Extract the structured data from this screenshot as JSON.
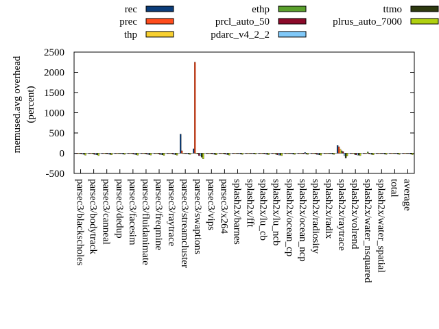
{
  "chart_data": {
    "type": "bar",
    "title": "",
    "ylabel": "memused.avg overhead (percent)",
    "ylabel_lines": [
      "memused.avg overhead",
      "(percent)"
    ],
    "xlabel": "",
    "ylim": [
      -500,
      2500
    ],
    "yticks": [
      -500,
      0,
      500,
      1000,
      1500,
      2000,
      2500
    ],
    "legend_position": "top",
    "categories": [
      "parsec3/blackscholes",
      "parsec3/bodytrack",
      "parsec3/canneal",
      "parsec3/dedup",
      "parsec3/facesim",
      "parsec3/fluidanimate",
      "parsec3/freqmine",
      "parsec3/raytrace",
      "parsec3/streamcluster",
      "parsec3/swaptions",
      "parsec3/vips",
      "parsec3/x264",
      "splash2x/barnes",
      "splash2x/fft",
      "splash2x/lu_cb",
      "splash2x/lu_ncb",
      "splash2x/ocean_cp",
      "splash2x/ocean_ncp",
      "splash2x/radiosity",
      "splash2x/radix",
      "splash2x/raytrace",
      "splash2x/volrend",
      "splash2x/water_nsquared",
      "splash2x/water_spatial",
      "total",
      "average"
    ],
    "series": [
      {
        "name": "rec",
        "color": "#0b3d7a",
        "values": [
          -5,
          -5,
          -5,
          -5,
          -5,
          -5,
          -5,
          -5,
          470,
          110,
          -5,
          -5,
          -5,
          -5,
          -5,
          -5,
          -5,
          -5,
          -5,
          -5,
          190,
          -5,
          -5,
          -5,
          -5,
          -5
        ]
      },
      {
        "name": "prec",
        "color": "#ff4c1c",
        "values": [
          -5,
          -5,
          -5,
          -5,
          -5,
          -5,
          -5,
          -5,
          60,
          2250,
          -5,
          -5,
          -5,
          -5,
          -5,
          -5,
          -5,
          -5,
          -5,
          -5,
          160,
          -5,
          -5,
          -5,
          -5,
          -5
        ]
      },
      {
        "name": "thp",
        "color": "#f8d030",
        "values": [
          -10,
          -10,
          -10,
          -10,
          -10,
          -10,
          -10,
          -10,
          -10,
          -10,
          -10,
          -10,
          -10,
          -10,
          -10,
          -10,
          -10,
          -10,
          -10,
          -10,
          100,
          -10,
          -10,
          -10,
          -10,
          -10
        ]
      },
      {
        "name": "ethp",
        "color": "#5aa02c",
        "values": [
          -15,
          -20,
          -20,
          -15,
          -15,
          -20,
          -20,
          -15,
          -10,
          -20,
          -15,
          -20,
          -15,
          -10,
          -15,
          -30,
          -15,
          -15,
          -20,
          -10,
          60,
          -30,
          30,
          -15,
          -10,
          -15
        ]
      },
      {
        "name": "prcl_auto_50",
        "color": "#8b0a2a",
        "values": [
          -20,
          -30,
          -20,
          -15,
          -25,
          -25,
          -30,
          -25,
          -15,
          -60,
          -20,
          -25,
          -15,
          -15,
          -20,
          -40,
          -15,
          -20,
          -30,
          -15,
          40,
          -40,
          -20,
          -15,
          -15,
          -15
        ]
      },
      {
        "name": "pdarc_v4_2_2",
        "color": "#80c8f8",
        "values": [
          -25,
          -35,
          -25,
          -20,
          -30,
          -30,
          -35,
          -30,
          -20,
          -70,
          -25,
          -30,
          -20,
          -15,
          -25,
          -45,
          -20,
          20,
          -35,
          -20,
          -60,
          -45,
          -25,
          -20,
          -20,
          -20
        ]
      },
      {
        "name": "ttmo",
        "color": "#2e3a10",
        "values": [
          -30,
          -40,
          -30,
          -25,
          -35,
          -35,
          -40,
          -35,
          -25,
          -100,
          -30,
          -35,
          -25,
          -20,
          -30,
          -50,
          -25,
          -25,
          -40,
          -25,
          -120,
          -50,
          -30,
          -25,
          -25,
          -25
        ]
      },
      {
        "name": "plrus_auto_7000",
        "color": "#b0d010",
        "values": [
          -50,
          -60,
          -40,
          -30,
          -50,
          -45,
          -55,
          -50,
          -30,
          -140,
          -40,
          -50,
          -30,
          -25,
          -35,
          -60,
          -30,
          -30,
          -50,
          -30,
          -70,
          -60,
          -40,
          -30,
          -30,
          -35
        ]
      }
    ]
  }
}
